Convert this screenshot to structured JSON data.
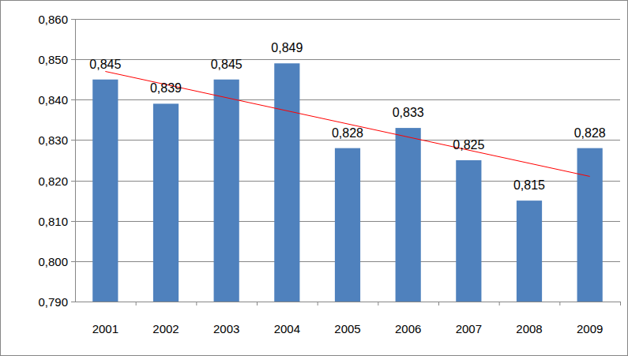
{
  "chart_data": {
    "type": "bar",
    "categories": [
      "2001",
      "2002",
      "2003",
      "2004",
      "2005",
      "2006",
      "2007",
      "2008",
      "2009"
    ],
    "values": [
      0.845,
      0.839,
      0.845,
      0.849,
      0.828,
      0.833,
      0.825,
      0.815,
      0.828
    ],
    "value_labels": [
      "0,845",
      "0,839",
      "0,845",
      "0,849",
      "0,828",
      "0,833",
      "0,825",
      "0,815",
      "0,828"
    ],
    "color": "#4f81bd",
    "ylim": [
      0.79,
      0.86
    ],
    "yticks": [
      {
        "value": 0.79,
        "label": "0,790"
      },
      {
        "value": 0.8,
        "label": "0,800"
      },
      {
        "value": 0.81,
        "label": "0,810"
      },
      {
        "value": 0.82,
        "label": "0,820"
      },
      {
        "value": 0.83,
        "label": "0,830"
      },
      {
        "value": 0.84,
        "label": "0,840"
      },
      {
        "value": 0.85,
        "label": "0,850"
      },
      {
        "value": 0.86,
        "label": "0,860"
      }
    ],
    "grid": true,
    "data_labels": true,
    "trend": {
      "values": [
        0.847,
        0.821
      ],
      "color": "#ff0000"
    }
  }
}
